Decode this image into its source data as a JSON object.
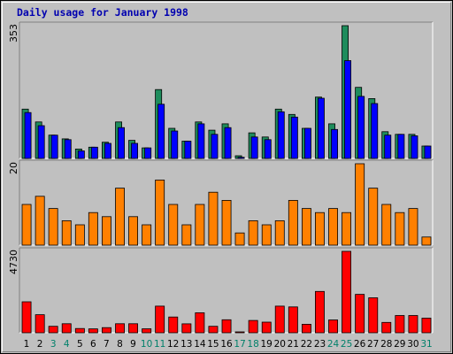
{
  "chart_data": {
    "type": "bar",
    "title": "Daily usage for January 1998",
    "categories": [
      "1",
      "2",
      "3",
      "4",
      "5",
      "6",
      "7",
      "8",
      "9",
      "10",
      "11",
      "12",
      "13",
      "14",
      "15",
      "16",
      "17",
      "18",
      "19",
      "20",
      "21",
      "22",
      "23",
      "24",
      "25",
      "26",
      "27",
      "28",
      "29",
      "30",
      "31"
    ],
    "weekend_days": [
      "3",
      "4",
      "10",
      "11",
      "17",
      "18",
      "24",
      "25",
      "31"
    ],
    "colors": {
      "panel_background": "#c0c0c0",
      "hits": "#1e8c5c",
      "files": "#0000ff",
      "sites": "#ff8000",
      "kbytes": "#ff0000",
      "weekday_label": "#000000",
      "weekend_label": "#00806a",
      "title": "#0000b0"
    },
    "panels": [
      {
        "max_label": "353",
        "ylim": [
          0,
          353
        ],
        "series": [
          {
            "key": "hits",
            "values": [
              131,
              97,
              62,
              52,
              25,
              30,
              43,
              97,
              48,
              28,
              183,
              80,
              46,
              97,
              75,
              92,
              7,
              68,
              57,
              131,
              117,
              80,
              163,
              92,
              353,
              189,
              159,
              71,
              64,
              64,
              33
            ]
          },
          {
            "key": "files",
            "values": [
              122,
              87,
              62,
              50,
              20,
              30,
              40,
              82,
              40,
              28,
              144,
              73,
              46,
              92,
              64,
              82,
              3,
              57,
              50,
              124,
              110,
              80,
              160,
              77,
              260,
              165,
              146,
              62,
              64,
              60,
              33
            ]
          }
        ]
      },
      {
        "max_label": "20",
        "ylim": [
          0,
          20
        ],
        "series": [
          {
            "key": "sites",
            "values": [
              10,
              12,
              9,
              6,
              5,
              8,
              7,
              14,
              7,
              5,
              16,
              10,
              5,
              10,
              13,
              11,
              3,
              6,
              5,
              6,
              11,
              9,
              8,
              9,
              8,
              20,
              14,
              10,
              8,
              9,
              2
            ]
          }
        ]
      },
      {
        "max_label": "4730",
        "ylim": [
          0,
          4730
        ],
        "series": [
          {
            "key": "kbytes",
            "values": [
              1800,
              1050,
              375,
              525,
              245,
              225,
              300,
              525,
              525,
              230,
              1550,
              915,
              520,
              1160,
              375,
              755,
              50,
              715,
              615,
              1550,
              1500,
              495,
              2400,
              745,
              4730,
              2230,
              2030,
              600,
              1000,
              1000,
              850
            ]
          }
        ]
      }
    ]
  }
}
